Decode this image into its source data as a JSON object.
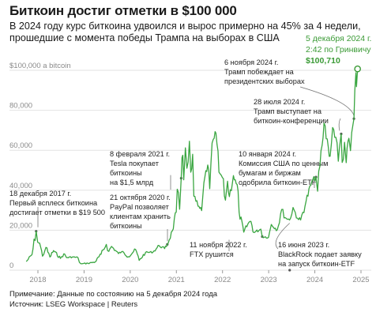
{
  "title": "Биткоин достиг отметки в $100 000",
  "subtitle": "В 2024 году курс биткоина удвоился и вырос примерно на 45% за 4 недели, прошедшие с момента победы Трампа на выборах в США",
  "footer": {
    "note": "Примечание: Данные по состоянию на 5 декабря 2024 года",
    "source": "Источник: LSEG Workspace | Reuters"
  },
  "colors": {
    "line": "#3aa641",
    "highlight": "#3a9a35",
    "grid": "#e2e2e2",
    "text": "#222222"
  },
  "chart_data": {
    "type": "line",
    "ylim": [
      0,
      100000
    ],
    "y_ticks": [
      {
        "value": 0,
        "label": "0"
      },
      {
        "value": 20000,
        "label": "20,000"
      },
      {
        "value": 40000,
        "label": "40,000"
      },
      {
        "value": 60000,
        "label": "60,000"
      },
      {
        "value": 80000,
        "label": "80,000"
      },
      {
        "value": 100000,
        "label": "$100,000 a bitcoin"
      }
    ],
    "x_ticks": [
      "2018",
      "2019",
      "2020",
      "2021",
      "2022",
      "2023",
      "2024",
      "2025"
    ],
    "grid": "horizontal",
    "series": [
      {
        "points": [
          [
            "2017-10-01",
            4300
          ],
          [
            "2017-11-15",
            7800
          ],
          [
            "2017-12-18",
            19500
          ],
          [
            "2017-12-30",
            14000
          ],
          [
            "2018-01-15",
            13500
          ],
          [
            "2018-02-06",
            7000
          ],
          [
            "2018-03-05",
            11400
          ],
          [
            "2018-04-06",
            6600
          ],
          [
            "2018-05-05",
            9800
          ],
          [
            "2018-06-28",
            5900
          ],
          [
            "2018-07-25",
            8200
          ],
          [
            "2018-08-15",
            6300
          ],
          [
            "2018-09-30",
            6600
          ],
          [
            "2018-11-14",
            6300
          ],
          [
            "2018-11-25",
            3900
          ],
          [
            "2018-12-15",
            3200
          ],
          [
            "2019-01-31",
            3450
          ],
          [
            "2019-03-30",
            4100
          ],
          [
            "2019-05-15",
            8000
          ],
          [
            "2019-06-26",
            12900
          ],
          [
            "2019-07-16",
            9400
          ],
          [
            "2019-08-06",
            11900
          ],
          [
            "2019-09-30",
            8300
          ],
          [
            "2019-10-26",
            9300
          ],
          [
            "2019-12-17",
            6700
          ],
          [
            "2020-02-12",
            10400
          ],
          [
            "2020-03-12",
            4900
          ],
          [
            "2020-05-01",
            8800
          ],
          [
            "2020-06-30",
            9100
          ],
          [
            "2020-08-17",
            12300
          ],
          [
            "2020-09-30",
            10800
          ],
          [
            "2020-10-21",
            12900
          ],
          [
            "2020-11-30",
            19700
          ],
          [
            "2020-12-31",
            29000
          ],
          [
            "2021-01-08",
            40500
          ],
          [
            "2021-01-27",
            30500
          ],
          [
            "2021-02-08",
            46000
          ],
          [
            "2021-02-21",
            57500
          ],
          [
            "2021-02-28",
            45200
          ],
          [
            "2021-03-13",
            61200
          ],
          [
            "2021-03-25",
            51000
          ],
          [
            "2021-04-14",
            64500
          ],
          [
            "2021-04-25",
            49000
          ],
          [
            "2021-05-10",
            58000
          ],
          [
            "2021-05-19",
            37000
          ],
          [
            "2021-06-21",
            32000
          ],
          [
            "2021-07-20",
            29800
          ],
          [
            "2021-08-15",
            47000
          ],
          [
            "2021-09-06",
            52600
          ],
          [
            "2021-09-22",
            40800
          ],
          [
            "2021-10-20",
            65500
          ],
          [
            "2021-11-10",
            68500
          ],
          [
            "2021-12-04",
            49000
          ],
          [
            "2021-12-31",
            46300
          ],
          [
            "2022-01-24",
            35000
          ],
          [
            "2022-02-10",
            44500
          ],
          [
            "2022-02-24",
            36800
          ],
          [
            "2022-03-28",
            47300
          ],
          [
            "2022-05-04",
            39700
          ],
          [
            "2022-05-12",
            29000
          ],
          [
            "2022-06-18",
            19000
          ],
          [
            "2022-07-29",
            24000
          ],
          [
            "2022-08-14",
            24400
          ],
          [
            "2022-09-06",
            18800
          ],
          [
            "2022-10-31",
            20500
          ],
          [
            "2022-11-11",
            16800
          ],
          [
            "2022-12-31",
            16500
          ],
          [
            "2023-01-22",
            22900
          ],
          [
            "2023-03-10",
            20200
          ],
          [
            "2023-04-14",
            30400
          ],
          [
            "2023-05-12",
            26300
          ],
          [
            "2023-06-15",
            25100
          ],
          [
            "2023-07-13",
            31400
          ],
          [
            "2023-08-17",
            26000
          ],
          [
            "2023-09-11",
            25100
          ],
          [
            "2023-10-24",
            34500
          ],
          [
            "2023-12-08",
            44200
          ],
          [
            "2024-01-10",
            46600
          ],
          [
            "2024-01-23",
            39500
          ],
          [
            "2024-02-28",
            62500
          ],
          [
            "2024-03-14",
            73500
          ],
          [
            "2024-04-17",
            61300
          ],
          [
            "2024-05-01",
            57000
          ],
          [
            "2024-05-21",
            71400
          ],
          [
            "2024-06-16",
            66500
          ],
          [
            "2024-07-05",
            54500
          ],
          [
            "2024-07-28",
            68200
          ],
          [
            "2024-08-05",
            53900
          ],
          [
            "2024-08-24",
            64000
          ],
          [
            "2024-09-06",
            53800
          ],
          [
            "2024-09-27",
            66000
          ],
          [
            "2024-10-10",
            59800
          ],
          [
            "2024-10-29",
            72700
          ],
          [
            "2024-11-06",
            75800
          ],
          [
            "2024-11-13",
            90000
          ],
          [
            "2024-11-22",
            98800
          ],
          [
            "2024-11-26",
            91800
          ],
          [
            "2024-12-05",
            100710
          ]
        ]
      }
    ],
    "annotations": [
      {
        "date": "2017-12-18",
        "lines": [
          "18 декабря 2017 г.",
          "Первый всплеск биткоина",
          "достигает отметки в $19 500"
        ]
      },
      {
        "date": "2021-02-08",
        "lines": [
          "8 февраля 2021 г.",
          "Tesla покупает",
          "биткоины",
          "на $1,5 млрд"
        ]
      },
      {
        "date": "2020-10-21",
        "lines": [
          "21 октября 2020 г.",
          "PayPal позволяет",
          "клиентам хранить",
          "биткоины"
        ]
      },
      {
        "date": "2022-11-11",
        "lines": [
          "11 ноября 2022 г.",
          "FTX рушится"
        ]
      },
      {
        "date": "2024-01-10",
        "lines": [
          "10 января 2024 г.",
          "Комиссия США по ценным",
          "бумагам и биржам",
          "одобрила биткоин-ETF"
        ]
      },
      {
        "date": "2023-06-16",
        "lines": [
          "16 июня 2023 г.",
          "BlackRock подает заявку",
          "на запуск биткоин-ETF"
        ]
      },
      {
        "date": "2024-07-28",
        "lines": [
          "28 июля 2024 г.",
          "Трамп выступает на",
          "биткоин-конференции"
        ]
      },
      {
        "date": "2024-11-06",
        "lines": [
          "6 ноября 2024 г.",
          "Трамп побеждает на",
          "президентских выборах"
        ]
      }
    ],
    "highlight": {
      "date": "5 декабря 2024 г.",
      "time": "2:42 по Гринвичу",
      "value": "$100,710"
    }
  }
}
